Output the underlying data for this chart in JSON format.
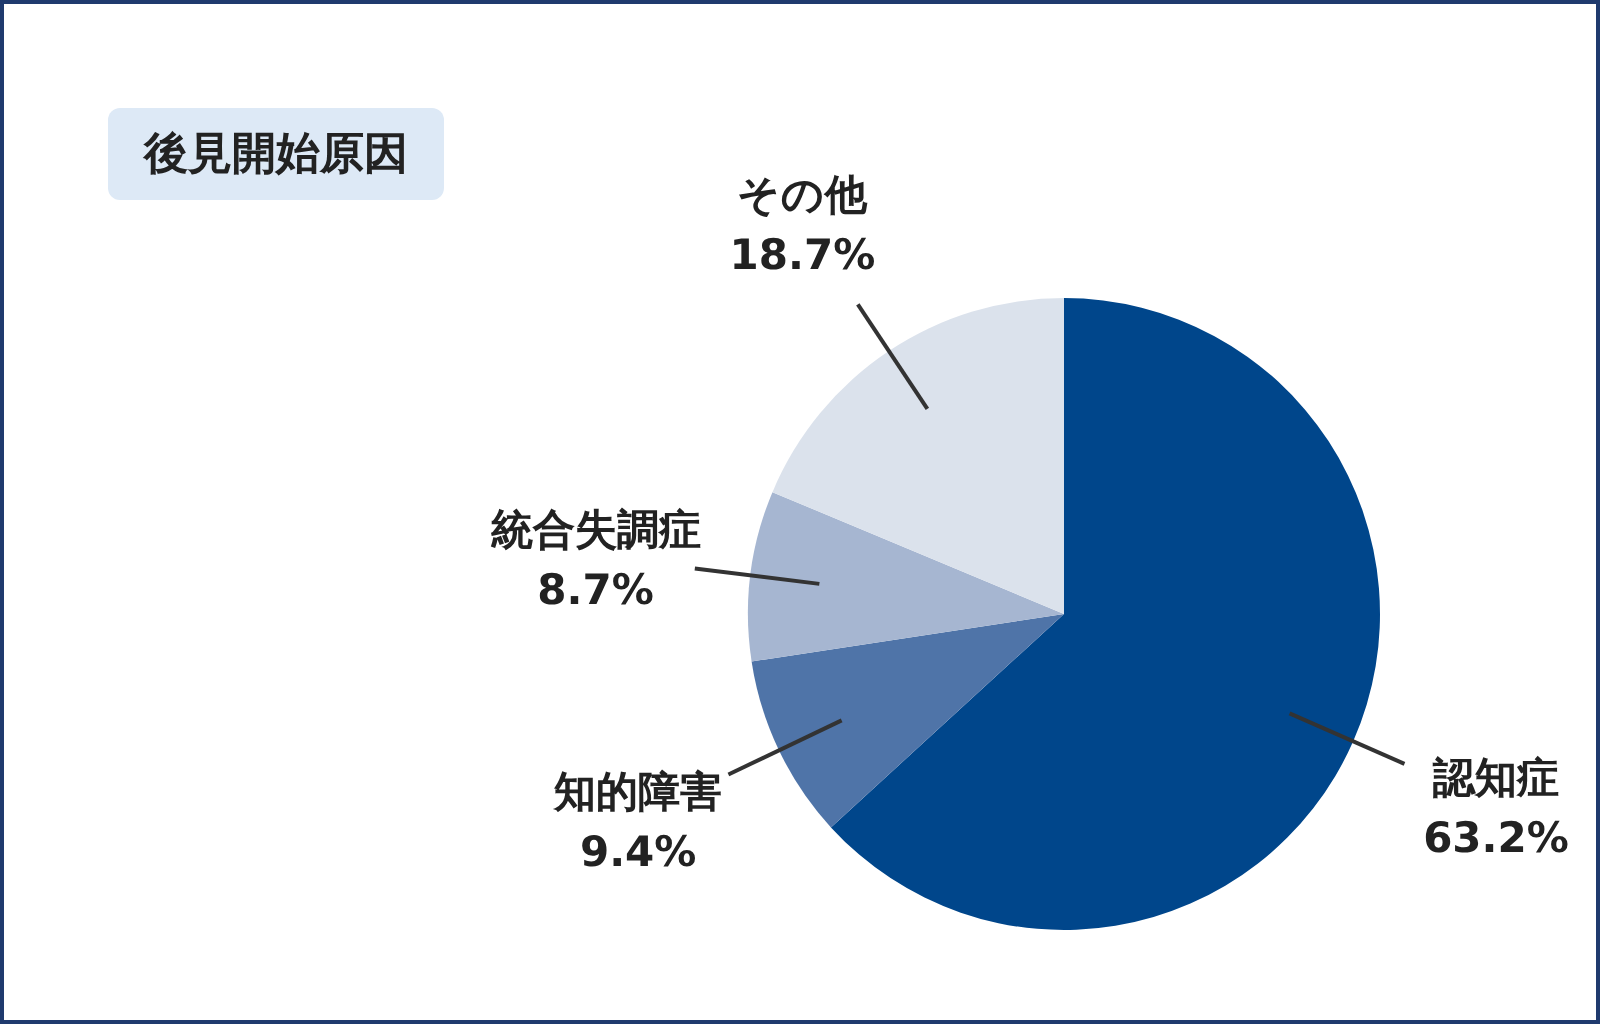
{
  "chart_data": {
    "type": "pie",
    "title": "後見開始原因",
    "categories": [
      "認知症",
      "知的障害",
      "統合失調症",
      "その他"
    ],
    "values": [
      63.2,
      9.4,
      8.7,
      18.7
    ],
    "value_labels": [
      "63.2%",
      "9.4%",
      "8.7%",
      "18.7%"
    ],
    "colors": [
      "#00468b",
      "#4f74a8",
      "#a6b6d1",
      "#dbe2ec"
    ]
  }
}
